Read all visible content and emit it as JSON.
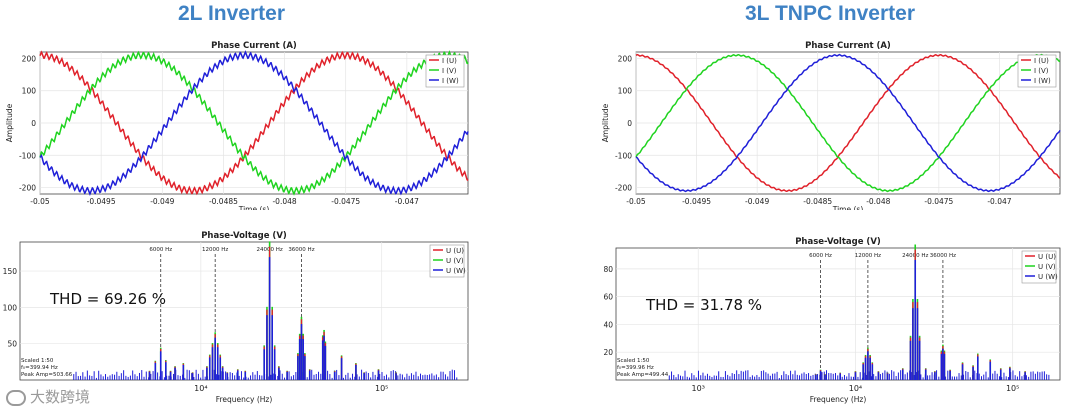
{
  "headings": {
    "left": "2L Inverter",
    "right": "3L TNPC Inverter"
  },
  "logo": {
    "text": "大数跨境"
  },
  "colors": {
    "U": "#e0212a",
    "V": "#1fd31f",
    "W": "#1f1fd8",
    "heading": "#3f82c4"
  },
  "chart_data": [
    {
      "id": "current_2l",
      "type": "line",
      "title": "Phase Current (A)",
      "xlabel": "Time (s)",
      "ylabel": "Amplitude",
      "xlim": [
        -0.05,
        -0.0465
      ],
      "ylim": [
        -220,
        220
      ],
      "xticks": [
        -0.05,
        -0.0495,
        -0.049,
        -0.0485,
        -0.048,
        -0.0475,
        -0.047
      ],
      "xtick_labels": [
        "-0.05",
        "-0.0495",
        "-0.049",
        "-0.0485",
        "-0.048",
        "-0.0475",
        "-0.047"
      ],
      "yticks": [
        -200,
        -100,
        0,
        100,
        200
      ],
      "ytick_labels": [
        "-200",
        "-100",
        "0",
        "100",
        "200"
      ],
      "grid": true,
      "legend": "top-right",
      "amplitude": 210,
      "frequency_hz": 400,
      "ripple_amplitude": 10,
      "ripple_period_s": 4.17e-05,
      "series": [
        {
          "name": "I (U)",
          "phase_deg": 0,
          "color": "#e0212a"
        },
        {
          "name": "I (V)",
          "phase_deg": -120,
          "color": "#1fd31f"
        },
        {
          "name": "I (W)",
          "phase_deg": 120,
          "color": "#1f1fd8"
        }
      ]
    },
    {
      "id": "current_3l",
      "type": "line",
      "title": "Phase Current (A)",
      "xlabel": "Time (s)",
      "ylabel": "Amplitude",
      "xlim": [
        -0.05,
        -0.0465
      ],
      "ylim": [
        -220,
        220
      ],
      "xticks": [
        -0.05,
        -0.0495,
        -0.049,
        -0.0485,
        -0.048,
        -0.0475,
        -0.047
      ],
      "xtick_labels": [
        "-0.05",
        "-0.0495",
        "-0.049",
        "-0.0485",
        "-0.048",
        "-0.0475",
        "-0.047"
      ],
      "yticks": [
        -200,
        -100,
        0,
        100,
        200
      ],
      "ytick_labels": [
        "-200",
        "-100",
        "0",
        "100",
        "200"
      ],
      "grid": true,
      "legend": "top-right",
      "amplitude": 210,
      "frequency_hz": 400,
      "ripple_amplitude": 2,
      "ripple_period_s": 4.17e-05,
      "series": [
        {
          "name": "I (U)",
          "phase_deg": 0,
          "color": "#e0212a"
        },
        {
          "name": "I (V)",
          "phase_deg": -120,
          "color": "#1fd31f"
        },
        {
          "name": "I (W)",
          "phase_deg": 120,
          "color": "#1f1fd8"
        }
      ]
    },
    {
      "id": "spectrum_2l",
      "type": "bar",
      "title": "Phase-Voltage (V)",
      "xlabel": "Frequency (Hz)",
      "xscale": "log",
      "xlim": [
        1000,
        300000
      ],
      "ylim": [
        0,
        190
      ],
      "xticks": [
        10000,
        100000
      ],
      "xtick_labels": [
        "10⁴",
        "10⁵"
      ],
      "yticks": [
        50,
        100,
        150
      ],
      "ytick_labels": [
        "50",
        "100",
        "150"
      ],
      "grid": true,
      "legend": "top-right",
      "series_names": [
        "U (U)",
        "U (V)",
        "U (W)"
      ],
      "markers": [
        {
          "freq": 6000,
          "label": "6000 Hz"
        },
        {
          "freq": 12000,
          "label": "12000 Hz"
        },
        {
          "freq": 24000,
          "label": "24000 Hz"
        },
        {
          "freq": 36000,
          "label": "36000 Hz"
        }
      ],
      "annotation": "THD = 69.26 %",
      "info_lines": [
        "Scaled 1:50",
        "f₀=399.94 Hz",
        "Peak Amp=503.66"
      ],
      "peaks": [
        {
          "freq": 5200,
          "value": 12
        },
        {
          "freq": 5600,
          "value": 25
        },
        {
          "freq": 6000,
          "value": 42
        },
        {
          "freq": 6400,
          "value": 26
        },
        {
          "freq": 6800,
          "value": 12
        },
        {
          "freq": 7200,
          "value": 18
        },
        {
          "freq": 8000,
          "value": 22
        },
        {
          "freq": 9000,
          "value": 10
        },
        {
          "freq": 10800,
          "value": 18
        },
        {
          "freq": 11200,
          "value": 33
        },
        {
          "freq": 11600,
          "value": 48
        },
        {
          "freq": 12000,
          "value": 62
        },
        {
          "freq": 12400,
          "value": 48
        },
        {
          "freq": 12800,
          "value": 33
        },
        {
          "freq": 13200,
          "value": 18
        },
        {
          "freq": 14000,
          "value": 10
        },
        {
          "freq": 16000,
          "value": 14
        },
        {
          "freq": 17600,
          "value": 12
        },
        {
          "freq": 22400,
          "value": 45
        },
        {
          "freq": 23200,
          "value": 95
        },
        {
          "freq": 24000,
          "value": 180
        },
        {
          "freq": 24800,
          "value": 95
        },
        {
          "freq": 25600,
          "value": 45
        },
        {
          "freq": 27000,
          "value": 18
        },
        {
          "freq": 30000,
          "value": 12
        },
        {
          "freq": 34400,
          "value": 35
        },
        {
          "freq": 35200,
          "value": 60
        },
        {
          "freq": 36000,
          "value": 82
        },
        {
          "freq": 36800,
          "value": 60
        },
        {
          "freq": 37600,
          "value": 35
        },
        {
          "freq": 40000,
          "value": 14
        },
        {
          "freq": 47200,
          "value": 58
        },
        {
          "freq": 48000,
          "value": 65
        },
        {
          "freq": 48800,
          "value": 50
        },
        {
          "freq": 55000,
          "value": 12
        },
        {
          "freq": 60000,
          "value": 32
        },
        {
          "freq": 72000,
          "value": 22
        },
        {
          "freq": 80000,
          "value": 10
        },
        {
          "freq": 96000,
          "value": 14
        },
        {
          "freq": 120000,
          "value": 10
        }
      ]
    },
    {
      "id": "spectrum_3l",
      "type": "bar",
      "title": "Phase-Voltage (V)",
      "xlabel": "Frequency (Hz)",
      "xscale": "log",
      "xlim": [
        300,
        200000
      ],
      "ylim": [
        0,
        95
      ],
      "xticks": [
        1000,
        10000,
        100000
      ],
      "xtick_labels": [
        "10³",
        "10⁴",
        "10⁵"
      ],
      "yticks": [
        20,
        40,
        60,
        80
      ],
      "ytick_labels": [
        "20",
        "40",
        "60",
        "80"
      ],
      "grid": true,
      "legend": "top-right",
      "series_names": [
        "U (U)",
        "U (V)",
        "U (W)"
      ],
      "markers": [
        {
          "freq": 6000,
          "label": "6000 Hz"
        },
        {
          "freq": 12000,
          "label": "12000 Hz"
        },
        {
          "freq": 24000,
          "label": "24000 Hz"
        },
        {
          "freq": 36000,
          "label": "36000 Hz"
        }
      ],
      "annotation": "THD = 31.78 %",
      "info_lines": [
        "Scaled 1:50",
        "f₀=399.96 Hz",
        "Peak Amp=499.44"
      ],
      "peaks": [
        {
          "freq": 5600,
          "value": 4
        },
        {
          "freq": 6000,
          "value": 7
        },
        {
          "freq": 6400,
          "value": 4
        },
        {
          "freq": 8000,
          "value": 5
        },
        {
          "freq": 10000,
          "value": 6
        },
        {
          "freq": 11200,
          "value": 12
        },
        {
          "freq": 11600,
          "value": 17
        },
        {
          "freq": 12000,
          "value": 22
        },
        {
          "freq": 12400,
          "value": 17
        },
        {
          "freq": 12800,
          "value": 12
        },
        {
          "freq": 14000,
          "value": 6
        },
        {
          "freq": 16000,
          "value": 5
        },
        {
          "freq": 20000,
          "value": 8
        },
        {
          "freq": 22400,
          "value": 30
        },
        {
          "freq": 23200,
          "value": 55
        },
        {
          "freq": 24000,
          "value": 92
        },
        {
          "freq": 24800,
          "value": 55
        },
        {
          "freq": 25600,
          "value": 30
        },
        {
          "freq": 28000,
          "value": 8
        },
        {
          "freq": 32000,
          "value": 6
        },
        {
          "freq": 35200,
          "value": 20
        },
        {
          "freq": 36000,
          "value": 24
        },
        {
          "freq": 36800,
          "value": 20
        },
        {
          "freq": 40000,
          "value": 7
        },
        {
          "freq": 48000,
          "value": 12
        },
        {
          "freq": 56000,
          "value": 10
        },
        {
          "freq": 60000,
          "value": 18
        },
        {
          "freq": 72000,
          "value": 14
        },
        {
          "freq": 84000,
          "value": 8
        },
        {
          "freq": 96000,
          "value": 9
        },
        {
          "freq": 120000,
          "value": 6
        }
      ]
    }
  ]
}
